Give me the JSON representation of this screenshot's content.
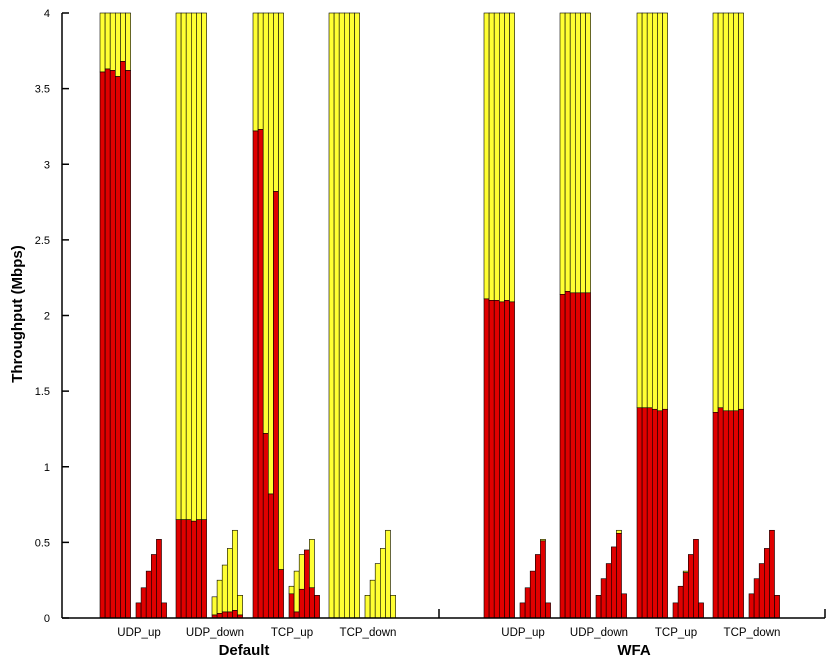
{
  "chart_data": {
    "type": "bar",
    "title": "",
    "ylabel": "Throughput (Mbps)",
    "ylim": [
      0,
      4
    ],
    "yticks": [
      "0",
      "0.5",
      "1",
      "1.5",
      "2",
      "2.5",
      "3",
      "3.5",
      "4"
    ],
    "colors": {
      "throughput": "#e00000",
      "remainder": "#ffff33",
      "outline": "#000000"
    },
    "groups": [
      {
        "label": "Default",
        "categories": [
          {
            "label": "UDP_up",
            "tall": [
              3.61,
              3.63,
              3.62,
              3.58,
              3.68,
              3.62
            ],
            "ramp": [
              0.1,
              0.2,
              0.31,
              0.42,
              0.52,
              0.1
            ],
            "ramp_total": [
              0.1,
              0.2,
              0.31,
              0.42,
              0.52,
              0.1
            ]
          },
          {
            "label": "UDP_down",
            "tall": [
              0.65,
              0.65,
              0.65,
              0.64,
              0.65,
              0.65
            ],
            "ramp": [
              0.02,
              0.03,
              0.04,
              0.04,
              0.05,
              0.02
            ],
            "ramp_total": [
              0.14,
              0.25,
              0.35,
              0.46,
              0.58,
              0.15
            ]
          },
          {
            "label": "TCP_up",
            "tall": [
              3.22,
              3.23,
              1.22,
              0.82,
              2.82,
              0.32
            ],
            "ramp": [
              0.16,
              0.04,
              0.19,
              0.45,
              0.2,
              0.15
            ],
            "ramp_total": [
              0.21,
              0.31,
              0.42,
              0.45,
              0.52,
              0.15
            ]
          },
          {
            "label": "TCP_down",
            "tall": [
              0,
              0,
              0,
              0,
              0,
              0
            ],
            "ramp": [
              0,
              0,
              0,
              0,
              0,
              0
            ],
            "ramp_total": [
              0.15,
              0.25,
              0.36,
              0.46,
              0.58,
              0.15
            ]
          }
        ]
      },
      {
        "label": "WFA",
        "categories": [
          {
            "label": "UDP_up",
            "tall": [
              2.11,
              2.1,
              2.1,
              2.09,
              2.1,
              2.09
            ],
            "ramp": [
              0.1,
              0.2,
              0.31,
              0.42,
              0.51,
              0.1
            ],
            "ramp_total": [
              0.1,
              0.2,
              0.31,
              0.42,
              0.52,
              0.1
            ]
          },
          {
            "label": "UDP_down",
            "tall": [
              2.14,
              2.16,
              2.15,
              2.15,
              2.15,
              2.15
            ],
            "ramp": [
              0.15,
              0.26,
              0.36,
              0.47,
              0.56,
              0.16
            ],
            "ramp_total": [
              0.15,
              0.26,
              0.36,
              0.47,
              0.58,
              0.16
            ]
          },
          {
            "label": "TCP_up",
            "tall": [
              1.39,
              1.39,
              1.39,
              1.38,
              1.37,
              1.38
            ],
            "ramp": [
              0.1,
              0.21,
              0.3,
              0.42,
              0.52,
              0.1
            ],
            "ramp_total": [
              0.1,
              0.21,
              0.31,
              0.42,
              0.52,
              0.1
            ]
          },
          {
            "label": "TCP_down",
            "tall": [
              1.36,
              1.39,
              1.37,
              1.37,
              1.37,
              1.38
            ],
            "ramp": [
              0.16,
              0.26,
              0.36,
              0.46,
              0.58,
              0.15
            ],
            "ramp_total": [
              0.16,
              0.26,
              0.36,
              0.46,
              0.58,
              0.15
            ]
          }
        ]
      }
    ],
    "tall_total": 4
  }
}
